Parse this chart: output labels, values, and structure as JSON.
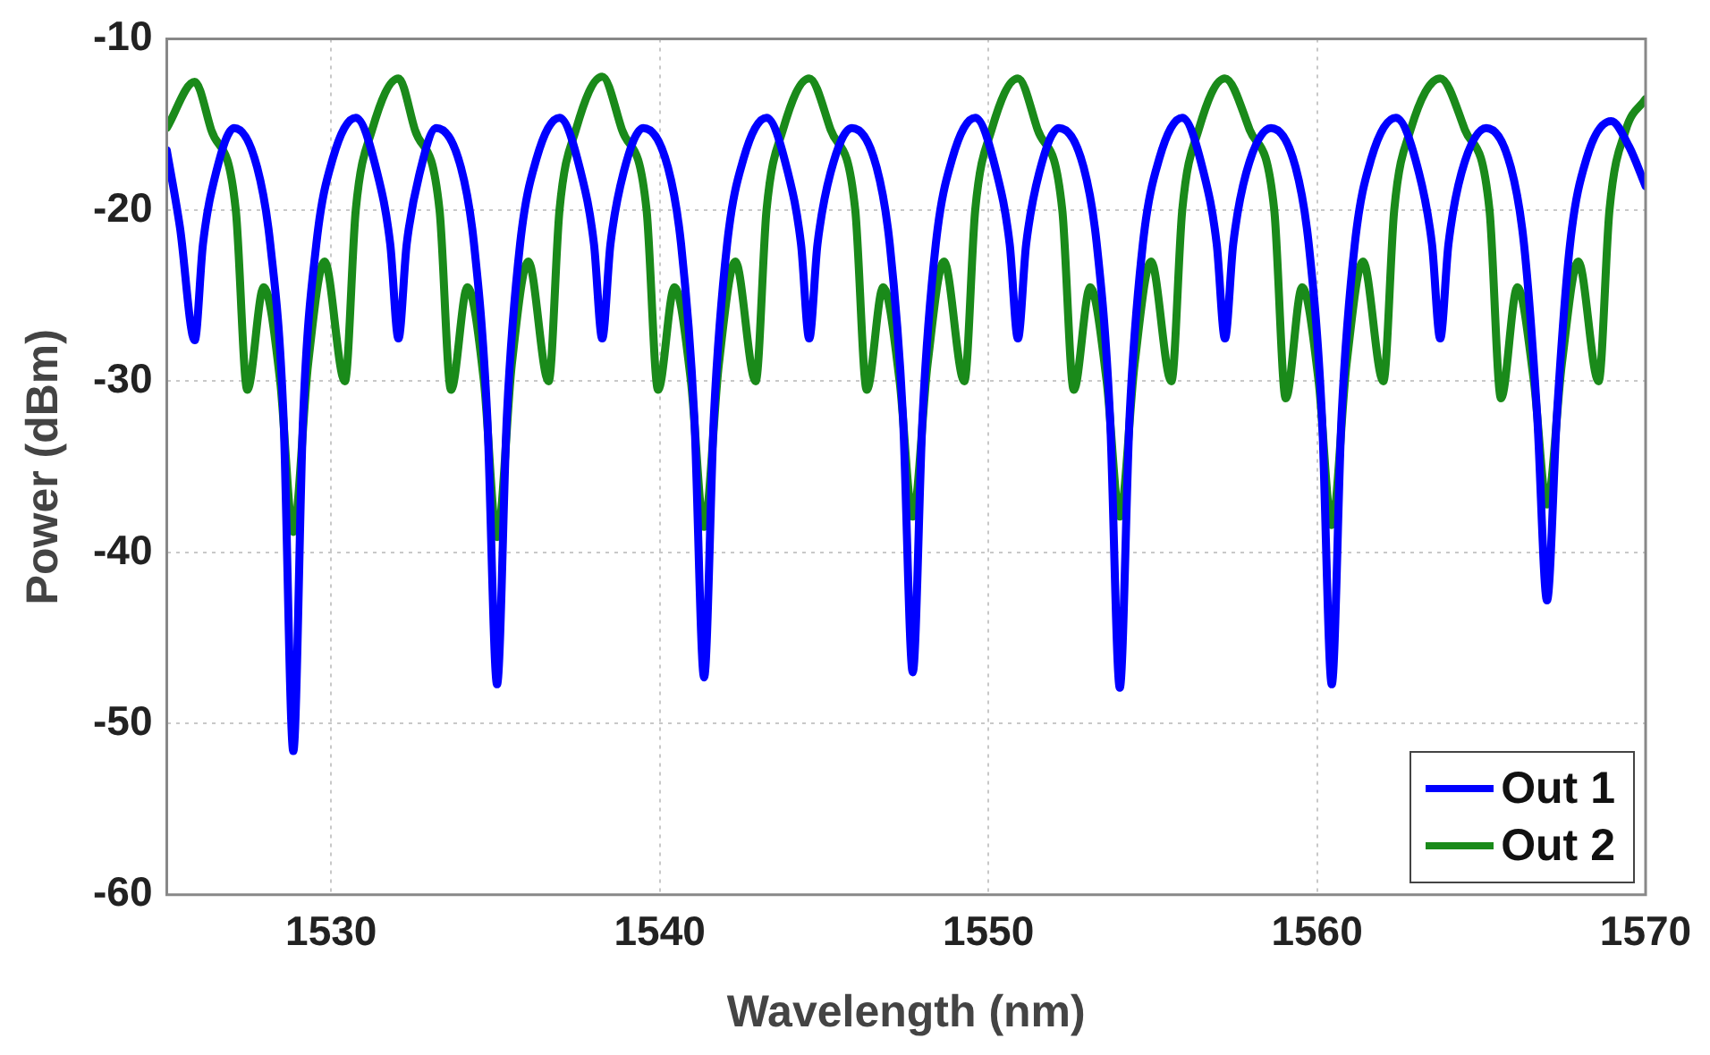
{
  "chart_data": {
    "type": "line",
    "xlabel": "Wavelength (nm)",
    "ylabel": "Power (dBm)",
    "xlim": [
      1525,
      1570
    ],
    "xticks": [
      1530,
      1540,
      1550,
      1560,
      1570
    ],
    "ylim": [
      -60,
      -10
    ],
    "yticks": [
      -60,
      -50,
      -40,
      -30,
      -20,
      -10
    ],
    "grid": true,
    "legend": "bottom right",
    "series": [
      {
        "name": "Out 1",
        "color": "#0000ff",
        "x": [
          1525,
          1525.4,
          1525.85,
          1526.1,
          1526.5,
          1527.05,
          1527.75,
          1528.15,
          1528.55,
          1528.85,
          1529.15,
          1529.55,
          1530.05,
          1530.75,
          1531.4,
          1531.8,
          1532.05,
          1532.3,
          1532.7,
          1533.2,
          1533.95,
          1534.35,
          1534.75,
          1535.05,
          1535.35,
          1535.75,
          1536.25,
          1536.95,
          1537.6,
          1538.0,
          1538.25,
          1538.5,
          1538.9,
          1539.5,
          1540.25,
          1540.65,
          1541.05,
          1541.35,
          1541.65,
          1542.05,
          1542.55,
          1543.25,
          1543.9,
          1544.3,
          1544.55,
          1544.8,
          1545.2,
          1545.85,
          1546.6,
          1547.0,
          1547.4,
          1547.7,
          1548.0,
          1548.4,
          1548.9,
          1549.6,
          1550.25,
          1550.65,
          1550.9,
          1551.15,
          1551.55,
          1552.15,
          1552.9,
          1553.3,
          1553.7,
          1554.0,
          1554.3,
          1554.7,
          1555.2,
          1555.9,
          1556.55,
          1556.95,
          1557.2,
          1557.45,
          1557.85,
          1558.6,
          1559.35,
          1559.75,
          1560.15,
          1560.45,
          1560.75,
          1561.15,
          1561.65,
          1562.4,
          1563.1,
          1563.5,
          1563.75,
          1564.0,
          1564.4,
          1565.15,
          1565.9,
          1566.3,
          1566.7,
          1567.0,
          1567.3,
          1567.7,
          1568.2,
          1568.95,
          1569.5,
          1570
        ],
        "values": [
          -16.5,
          -21,
          -27.6,
          -22,
          -17.8,
          -15.2,
          -17.5,
          -22,
          -32,
          -51.6,
          -32,
          -22,
          -17,
          -14.6,
          -17.8,
          -22,
          -27.5,
          -22,
          -17.8,
          -15.2,
          -17.5,
          -22,
          -32,
          -47.7,
          -32,
          -22,
          -17,
          -14.6,
          -17.8,
          -22,
          -27.5,
          -22,
          -17.8,
          -15.2,
          -17.5,
          -22,
          -32,
          -47.3,
          -32,
          -22,
          -17,
          -14.6,
          -17.8,
          -22,
          -27.5,
          -22,
          -17.8,
          -15.2,
          -17.5,
          -22,
          -32,
          -47,
          -32,
          -22,
          -17,
          -14.6,
          -17.8,
          -22,
          -27.5,
          -22,
          -17.8,
          -15.2,
          -17.5,
          -22,
          -32,
          -47.9,
          -32,
          -22,
          -17,
          -14.6,
          -17.8,
          -22,
          -27.5,
          -22,
          -17.8,
          -15.2,
          -17.5,
          -22,
          -32,
          -47.7,
          -32,
          -22,
          -17,
          -14.6,
          -17.8,
          -22,
          -27.5,
          -22,
          -17.8,
          -15.2,
          -17.5,
          -22,
          -32,
          -42.8,
          -32,
          -22,
          -17,
          -14.8,
          -16.3,
          -18.6
        ]
      },
      {
        "name": "Out 2",
        "color": "#1a8a1a",
        "x": [
          1525,
          1525.85,
          1526.35,
          1527.1,
          1527.45,
          1527.95,
          1528.45,
          1528.85,
          1529.3,
          1529.8,
          1530.42,
          1530.75,
          1531.25,
          1532.05,
          1532.55,
          1533.3,
          1533.65,
          1534.15,
          1534.65,
          1535.05,
          1535.5,
          1536.0,
          1536.62,
          1536.95,
          1537.45,
          1538.25,
          1538.85,
          1539.6,
          1539.95,
          1540.45,
          1540.95,
          1541.35,
          1541.8,
          1542.3,
          1542.92,
          1543.25,
          1543.75,
          1544.55,
          1545.2,
          1545.95,
          1546.3,
          1546.8,
          1547.3,
          1547.7,
          1548.15,
          1548.65,
          1549.27,
          1549.6,
          1550.1,
          1550.9,
          1551.5,
          1552.25,
          1552.6,
          1553.1,
          1553.6,
          1554.0,
          1554.45,
          1554.95,
          1555.57,
          1555.9,
          1556.4,
          1557.2,
          1557.95,
          1558.7,
          1559.05,
          1559.55,
          1560.05,
          1560.45,
          1560.9,
          1561.4,
          1562.02,
          1562.35,
          1562.85,
          1563.75,
          1564.5,
          1565.25,
          1565.6,
          1566.1,
          1566.6,
          1567.0,
          1567.45,
          1567.95,
          1568.57,
          1568.9,
          1569.4,
          1570
        ],
        "values": [
          -15.2,
          -12.5,
          -15.3,
          -20,
          -30.5,
          -24.5,
          -30,
          -38.8,
          -29,
          -23,
          -30,
          -20,
          -15.3,
          -12.3,
          -15.3,
          -20,
          -30.5,
          -24.5,
          -30,
          -39.1,
          -29,
          -23,
          -30,
          -20,
          -15.3,
          -12.2,
          -15.3,
          -20,
          -30.5,
          -24.5,
          -30,
          -38.5,
          -29,
          -23,
          -30,
          -20,
          -15.3,
          -12.3,
          -15.3,
          -20,
          -30.5,
          -24.5,
          -30,
          -37.9,
          -29,
          -23,
          -30,
          -20,
          -15.3,
          -12.3,
          -15.3,
          -20,
          -30.5,
          -24.5,
          -30,
          -37.9,
          -29,
          -23,
          -30,
          -20,
          -15.3,
          -12.3,
          -15.3,
          -20,
          -31,
          -24.5,
          -30,
          -38.4,
          -29,
          -23,
          -30,
          -20,
          -15.3,
          -12.3,
          -15.3,
          -20,
          -31,
          -24.5,
          -30,
          -37.2,
          -29,
          -23,
          -30,
          -20,
          -15.3,
          -13.5
        ]
      }
    ]
  }
}
